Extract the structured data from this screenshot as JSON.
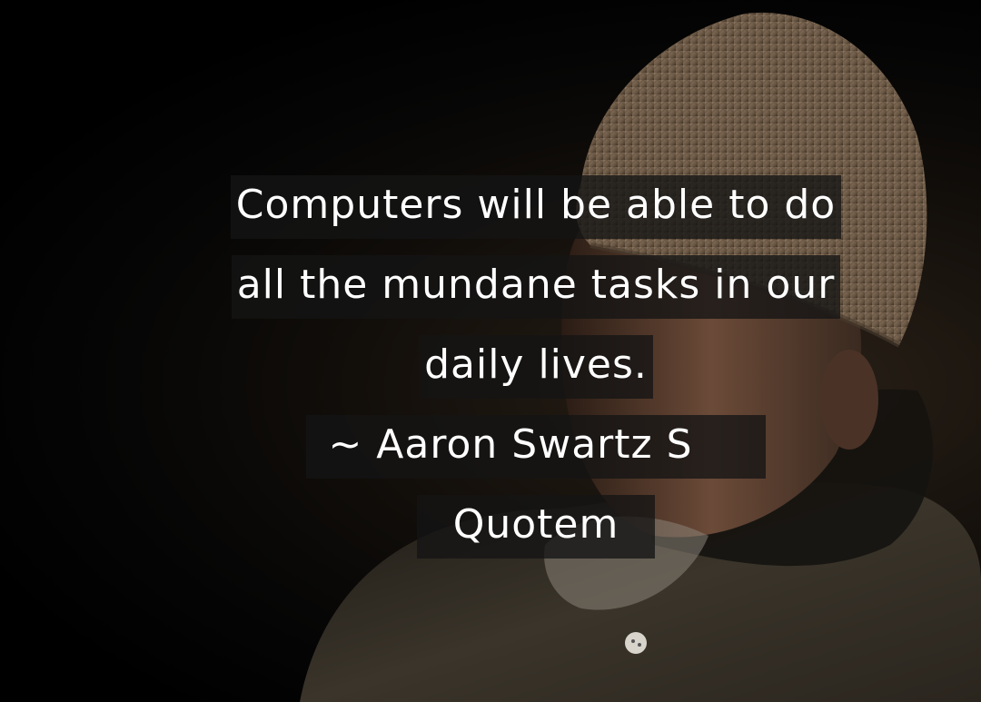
{
  "quote": {
    "lines": [
      "Computers will be able to do",
      "all the mundane tasks in our",
      "daily lives."
    ],
    "attribution_line1": "~ Aaron Swartz S",
    "attribution_line2": "Quotem"
  },
  "colors": {
    "background": "#000000",
    "text": "#ffffff",
    "text_box": "#141414",
    "hat": "#7a6650",
    "coat": "#2e2a22"
  }
}
